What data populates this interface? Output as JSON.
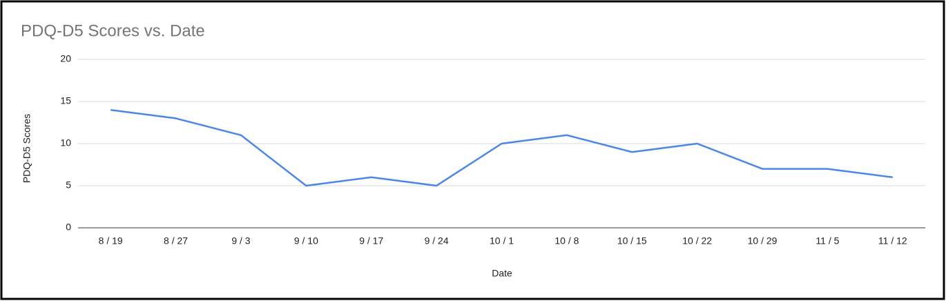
{
  "chart_data": {
    "type": "line",
    "title": "PDQ-D5 Scores vs. Date",
    "x_label": "Date",
    "y_label": "PDQ-D5 Scores",
    "categories": [
      "8 / 19",
      "8 / 27",
      "9 / 3",
      "9 / 10",
      "9 / 17",
      "9 / 24",
      "10 / 1",
      "10 / 8",
      "10 / 15",
      "10 / 22",
      "10 / 29",
      "11 / 5",
      "11 / 12"
    ],
    "values": [
      14,
      13,
      11,
      5,
      6,
      5,
      10,
      11,
      9,
      10,
      7,
      7,
      6
    ],
    "color": "#4a86e8",
    "ylim": [
      0,
      20
    ],
    "yticks": [
      0,
      5,
      10,
      15,
      20
    ],
    "grid": true
  }
}
